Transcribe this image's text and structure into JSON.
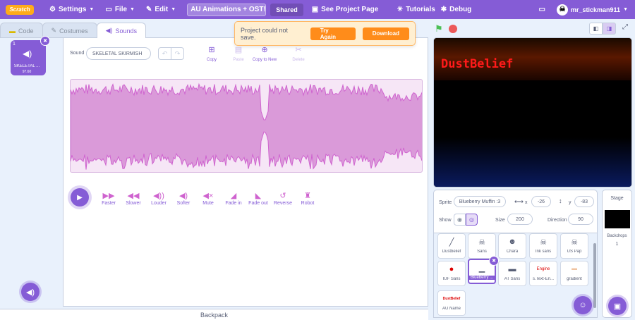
{
  "menubar": {
    "logo": "Scratch",
    "settings": "Settings",
    "file": "File",
    "edit": "Edit",
    "project_title": "AU Animations + OST!",
    "shared": "Shared",
    "see_project_page": "See Project Page",
    "tutorials": "Tutorials",
    "debug": "Debug",
    "username": "mr_stickman911"
  },
  "tabs": [
    {
      "label": "Code"
    },
    {
      "label": "Costumes"
    },
    {
      "label": "Sounds"
    }
  ],
  "sound_list": [
    {
      "index": "1",
      "name": "SKELETAL ...",
      "duration": "97.60"
    }
  ],
  "editor": {
    "sound_label": "Sound",
    "sound_name": "SKELETAL SKIRMISH",
    "copy": "Copy",
    "paste": "Paste",
    "copy_to_new": "Copy to New",
    "delete": "Delete"
  },
  "effects": [
    {
      "label": "Faster",
      "icon": "faster-icon"
    },
    {
      "label": "Slower",
      "icon": "slower-icon"
    },
    {
      "label": "Louder",
      "icon": "louder-icon"
    },
    {
      "label": "Softer",
      "icon": "softer-icon"
    },
    {
      "label": "Mute",
      "icon": "mute-icon"
    },
    {
      "label": "Fade in",
      "icon": "fade-in-icon"
    },
    {
      "label": "Fade out",
      "icon": "fade-out-icon"
    },
    {
      "label": "Reverse",
      "icon": "reverse-icon"
    },
    {
      "label": "Robot",
      "icon": "robot-icon"
    }
  ],
  "alert": {
    "message": "Project could not save.",
    "try_again": "Try Again",
    "download": "Download"
  },
  "stage": {
    "text": "DustBelief"
  },
  "sprite_info": {
    "sprite_label": "Sprite",
    "sprite_name": "Blueberry Muffin :3",
    "x_label": "x",
    "x_value": "-26",
    "y_label": "y",
    "y_value": "-83",
    "show_label": "Show",
    "size_label": "Size",
    "size_value": "200",
    "direction_label": "Direction",
    "direction_value": "90"
  },
  "sprites": [
    {
      "name": "Dustbelief"
    },
    {
      "name": "Sans"
    },
    {
      "name": "Chara"
    },
    {
      "name": "Ink sans"
    },
    {
      "name": "US Pap"
    },
    {
      "name": "IUF Sans"
    },
    {
      "name": "Blueberry ..."
    },
    {
      "name": "AT Sans"
    },
    {
      "name": "s.Text-En..."
    },
    {
      "name": "gradient"
    },
    {
      "name": "AU Name"
    }
  ],
  "sprite_thumbs": {
    "engine": "Engine",
    "au_name": "DustBelief"
  },
  "stage_panel": {
    "title": "Stage",
    "backdrops_label": "Backdrops",
    "backdrops_count": "1"
  },
  "backpack": "Backpack",
  "colors": {
    "accent": "#855cd6",
    "sound": "#cf63cf",
    "alert_bg": "#ffefd1",
    "alert_button": "#ff8c1a",
    "stage_text": "#ff1a1a"
  }
}
